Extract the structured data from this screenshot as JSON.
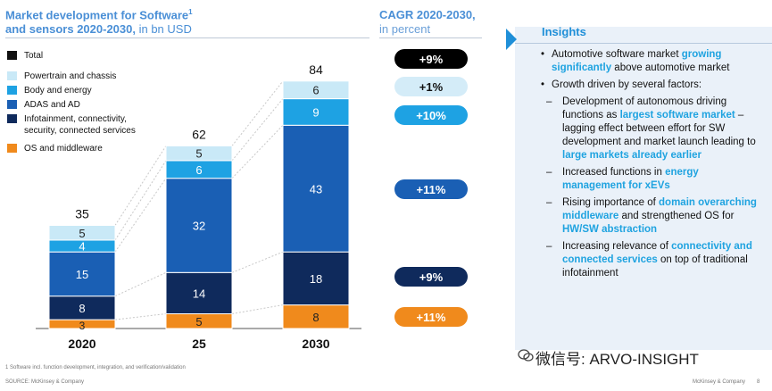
{
  "titles": {
    "left_line1": "Market development for Software",
    "left_sup": "1",
    "left_line2": "and sensors 2020-2030,",
    "left_unit": " in bn USD",
    "cagr_line1": "CAGR 2020-2030,",
    "cagr_unit": "in percent"
  },
  "colors": {
    "total": "#111111",
    "powertrain": "#c9e9f7",
    "body_energy": "#1ea2e3",
    "adas": "#1a5fb4",
    "infotainment": "#0f2a5c",
    "os": "#f08a1c",
    "highlight": "#1fa3e0",
    "panel": "#eaf1f9"
  },
  "legend": [
    {
      "label": "Total",
      "color": "#111111"
    },
    {
      "label": "Powertrain and chassis",
      "color": "#c9e9f7"
    },
    {
      "label": "Body and energy",
      "color": "#1ea2e3"
    },
    {
      "label": "ADAS and AD",
      "color": "#1a5fb4"
    },
    {
      "label": "Infotainment, connectivity,\nsecurity, connected services",
      "color": "#0f2a5c"
    },
    {
      "label": "OS and middleware",
      "color": "#f08a1c"
    }
  ],
  "chart_data": {
    "type": "bar",
    "stacked": true,
    "title": "Market development for Software and sensors 2020-2030, in bn USD",
    "categories": [
      "2020",
      "25",
      "2030"
    ],
    "series": [
      {
        "name": "OS and middleware",
        "values": [
          3,
          5,
          8
        ]
      },
      {
        "name": "Infotainment, connectivity, security, connected services",
        "values": [
          8,
          14,
          18
        ]
      },
      {
        "name": "ADAS and AD",
        "values": [
          15,
          32,
          43
        ]
      },
      {
        "name": "Body and energy",
        "values": [
          4,
          6,
          9
        ]
      },
      {
        "name": "Powertrain and chassis",
        "values": [
          5,
          5,
          6
        ]
      }
    ],
    "totals": [
      35,
      62,
      84
    ],
    "cagr": [
      {
        "series": "Total",
        "label": "+9%"
      },
      {
        "series": "Powertrain and chassis",
        "label": "+1%"
      },
      {
        "series": "Body and energy",
        "label": "+10%"
      },
      {
        "series": "ADAS and AD",
        "label": "+11%"
      },
      {
        "series": "Infotainment, connectivity, security, connected services",
        "label": "+9%"
      },
      {
        "series": "OS and middleware",
        "label": "+11%"
      }
    ],
    "ylim": [
      0,
      84
    ]
  },
  "insights": {
    "title": "Insights",
    "items": [
      {
        "parts": [
          {
            "t": "Automotive software market ",
            "h": false
          },
          {
            "t": "growing significantly",
            "h": true
          },
          {
            "t": " above automotive market",
            "h": false
          }
        ],
        "subs": []
      },
      {
        "parts": [
          {
            "t": "Growth driven by several factors:",
            "h": false
          }
        ],
        "subs": [
          [
            {
              "t": "Development of autonomous driving functions as ",
              "h": false
            },
            {
              "t": "largest software market",
              "h": true
            },
            {
              "t": " – lagging effect between effort for SW development and market launch leading to ",
              "h": false
            },
            {
              "t": "large markets already earlier",
              "h": true
            }
          ],
          [
            {
              "t": "Increased functions in ",
              "h": false
            },
            {
              "t": "energy management for xEVs",
              "h": true
            }
          ],
          [
            {
              "t": "Rising importance of ",
              "h": false
            },
            {
              "t": "domain overarching middleware",
              "h": true
            },
            {
              "t": " and strengthened OS for ",
              "h": false
            },
            {
              "t": "HW/SW abstraction",
              "h": true
            }
          ],
          [
            {
              "t": "Increasing relevance of ",
              "h": false
            },
            {
              "t": "connectivity and connected services",
              "h": true
            },
            {
              "t": " on top of traditional infotainment",
              "h": false
            }
          ]
        ]
      }
    ]
  },
  "footnote": "1 Software incl. function development, integration, and verification/validation",
  "source": "SOURCE: McKinsey & Company",
  "footer_right": "McKinsey & Company",
  "page_number": "8",
  "watermark": "微信号: ARVO-INSIGHT"
}
